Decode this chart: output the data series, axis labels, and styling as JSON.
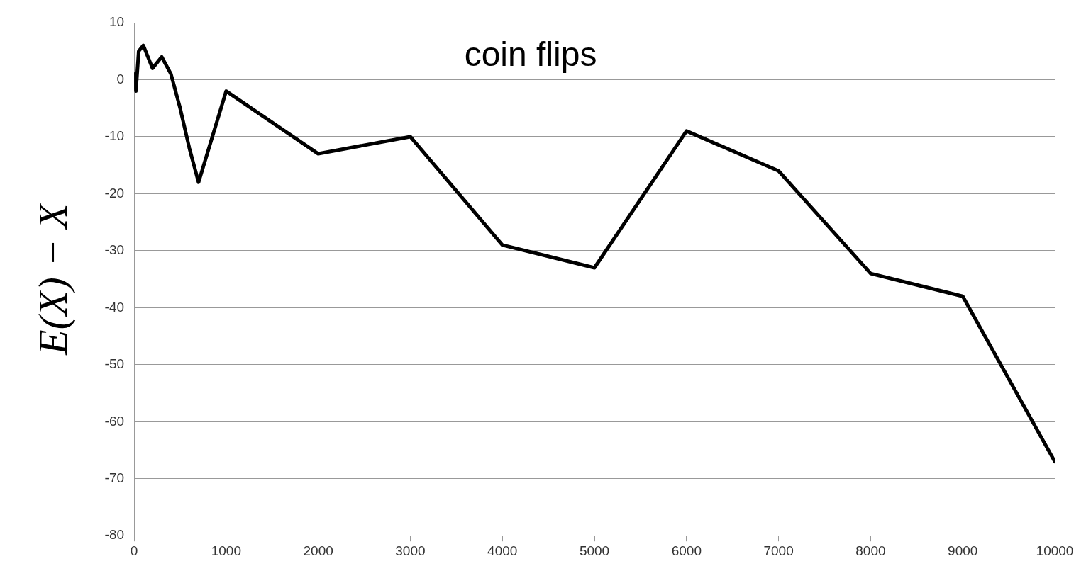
{
  "chart_data": {
    "type": "line",
    "title": "coin flips",
    "ylabel": "E(X) − X",
    "x": [
      10,
      20,
      50,
      100,
      200,
      300,
      400,
      500,
      600,
      700,
      1000,
      2000,
      3000,
      4000,
      5000,
      6000,
      7000,
      8000,
      9000,
      10000
    ],
    "series": [
      {
        "color": "#000000",
        "values": [
          1,
          -2,
          5,
          6,
          2,
          4,
          1,
          -5,
          -12,
          -18,
          -2,
          -13,
          -10,
          -29,
          -33,
          -9,
          -16,
          -34,
          -38,
          -67
        ]
      }
    ],
    "xlim": [
      0,
      10000
    ],
    "xticks": [
      0,
      1000,
      2000,
      3000,
      4000,
      5000,
      6000,
      7000,
      8000,
      9000,
      10000
    ],
    "ylim": [
      -80,
      10
    ],
    "yticks": [
      -80,
      -70,
      -60,
      -50,
      -40,
      -30,
      -20,
      -10,
      0,
      10
    ],
    "grid": "y",
    "legend": false,
    "marker": "none",
    "line_style": "solid"
  }
}
